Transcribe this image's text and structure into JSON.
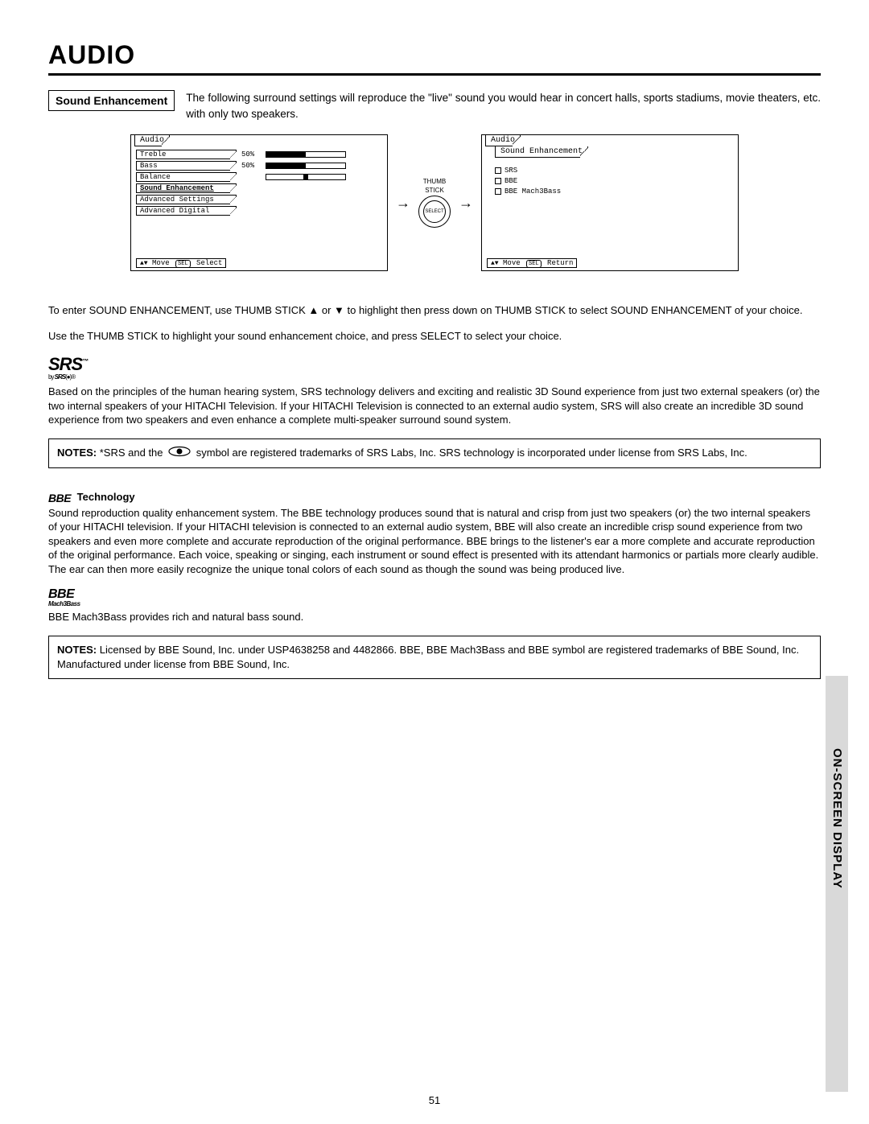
{
  "title": "AUDIO",
  "section_label": "Sound Enhancement",
  "intro": "The following surround settings will reproduce the \"live\" sound you would hear in concert halls, sports stadiums, movie theaters, etc. with only two speakers.",
  "menu_left": {
    "tab": "Audio",
    "items": [
      {
        "label": "Treble",
        "pct": "50%",
        "fill": 50
      },
      {
        "label": "Bass",
        "pct": "50%",
        "fill": 50
      },
      {
        "label": "Balance",
        "pct": "",
        "balance": 50
      },
      {
        "label": "Sound Enhancement",
        "hl": true
      },
      {
        "label": "Advanced Settings"
      },
      {
        "label": "Advanced Digital"
      }
    ],
    "footer_move": "Move",
    "footer_sel": "SEL",
    "footer_action": "Select"
  },
  "thumb_label_top": "THUMB",
  "thumb_label_bot": "STICK",
  "thumb_center": "SELECT",
  "menu_right": {
    "tab": "Audio",
    "subtab": "Sound Enhancement",
    "options": [
      "SRS",
      "BBE",
      "BBE Mach3Bass"
    ],
    "footer_move": "Move",
    "footer_sel": "SEL",
    "footer_action": "Return"
  },
  "para1": "To enter SOUND ENHANCEMENT, use THUMB STICK ▲ or ▼ to highlight then press down on THUMB STICK to select SOUND ENHANCEMENT of your choice.",
  "para2": "Use the THUMB STICK to highlight your sound enhancement choice, and press SELECT to select your choice.",
  "srs": {
    "logo": "SRS",
    "sub_prefix": "by ",
    "sub_brand": "SRS",
    "sub_symbol": "(●)®",
    "desc": "Based on the principles of the human hearing system, SRS technology delivers and exciting and realistic 3D Sound experience from just two external speakers (or) the two internal speakers of your HITACHI Television.  If your HITACHI Television is connected to an external audio system, SRS will also create an incredible 3D sound experience from two speakers and even enhance a complete multi-speaker surround sound system."
  },
  "notes1": {
    "label": "NOTES:",
    "text_before": " *SRS and the ",
    "text_after": " symbol are registered trademarks of SRS Labs, Inc. SRS technology is incorporated under license from SRS Labs, Inc."
  },
  "bbe": {
    "logo": "BBE",
    "tech_title": " Technology",
    "desc": "Sound reproduction quality enhancement system.  The BBE technology produces sound that is natural and crisp from just two speakers (or) the two internal speakers of your HITACHI television. If your HITACHI television is connected to an external audio system, BBE will also create an incredible crisp sound experience from two speakers and even more complete and accurate reproduction of the original performance.  BBE brings to the listener's ear a more complete and accurate reproduction of the original performance.  Each voice, speaking or singing, each instrument or sound effect is presented with its attendant harmonics or partials more clearly audible.  The ear can then more easily recognize the unique tonal colors of each sound as though the sound was being produced live."
  },
  "mach3": {
    "logo": "BBE",
    "sub": "Mach3Bass",
    "desc": "BBE Mach3Bass provides rich and natural bass sound."
  },
  "notes2": {
    "label": "NOTES:",
    "text": "  Licensed by BBE Sound, Inc. under USP4638258 and 4482866.  BBE, BBE Mach3Bass and BBE symbol are registered trademarks of BBE Sound, Inc.  Manufactured under license from BBE Sound, Inc."
  },
  "side_tab": "ON-SCREEN DISPLAY",
  "page_number": "51",
  "colors": {
    "side_tab_bg": "#d9d9d9",
    "text": "#000000",
    "bg": "#ffffff"
  }
}
